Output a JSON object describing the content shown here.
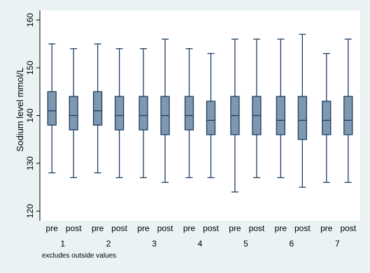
{
  "chart_data": {
    "type": "boxplot",
    "ylabel": "Sodium level mmol/L",
    "ylim": [
      118,
      162
    ],
    "yticks": [
      120,
      130,
      140,
      150,
      160
    ],
    "groups": [
      "1",
      "2",
      "3",
      "4",
      "5",
      "6",
      "7"
    ],
    "box_labels": [
      "pre",
      "post"
    ],
    "note": "excludes outside values",
    "grid": false,
    "legend": "none",
    "colors": {
      "box_fill": "#7e98b2",
      "box_stroke": "#1f3e5f",
      "whisker": "#1f3e5f",
      "plot_bg": "#ffffff",
      "outer_bg": "#eaf2f3"
    },
    "boxes": [
      {
        "group": "1",
        "label": "pre",
        "min": 128,
        "q1": 138,
        "median": 141,
        "q3": 145,
        "max": 155
      },
      {
        "group": "1",
        "label": "post",
        "min": 127,
        "q1": 137,
        "median": 140,
        "q3": 144,
        "max": 154
      },
      {
        "group": "2",
        "label": "pre",
        "min": 128,
        "q1": 138,
        "median": 141,
        "q3": 145,
        "max": 155
      },
      {
        "group": "2",
        "label": "post",
        "min": 127,
        "q1": 137,
        "median": 140,
        "q3": 144,
        "max": 154
      },
      {
        "group": "3",
        "label": "pre",
        "min": 127,
        "q1": 137,
        "median": 140,
        "q3": 144,
        "max": 154
      },
      {
        "group": "3",
        "label": "post",
        "min": 126,
        "q1": 136,
        "median": 140,
        "q3": 144,
        "max": 156
      },
      {
        "group": "4",
        "label": "pre",
        "min": 127,
        "q1": 137,
        "median": 140,
        "q3": 144,
        "max": 154
      },
      {
        "group": "4",
        "label": "post",
        "min": 127,
        "q1": 136,
        "median": 139,
        "q3": 143,
        "max": 153
      },
      {
        "group": "5",
        "label": "pre",
        "min": 124,
        "q1": 136,
        "median": 140,
        "q3": 144,
        "max": 156
      },
      {
        "group": "5",
        "label": "post",
        "min": 127,
        "q1": 136,
        "median": 140,
        "q3": 144,
        "max": 156
      },
      {
        "group": "6",
        "label": "pre",
        "min": 127,
        "q1": 136,
        "median": 139,
        "q3": 144,
        "max": 156
      },
      {
        "group": "6",
        "label": "post",
        "min": 125,
        "q1": 135,
        "median": 139,
        "q3": 144,
        "max": 157
      },
      {
        "group": "7",
        "label": "pre",
        "min": 126,
        "q1": 136,
        "median": 139,
        "q3": 143,
        "max": 153
      },
      {
        "group": "7",
        "label": "post",
        "min": 126,
        "q1": 136,
        "median": 139,
        "q3": 144,
        "max": 156
      }
    ]
  }
}
